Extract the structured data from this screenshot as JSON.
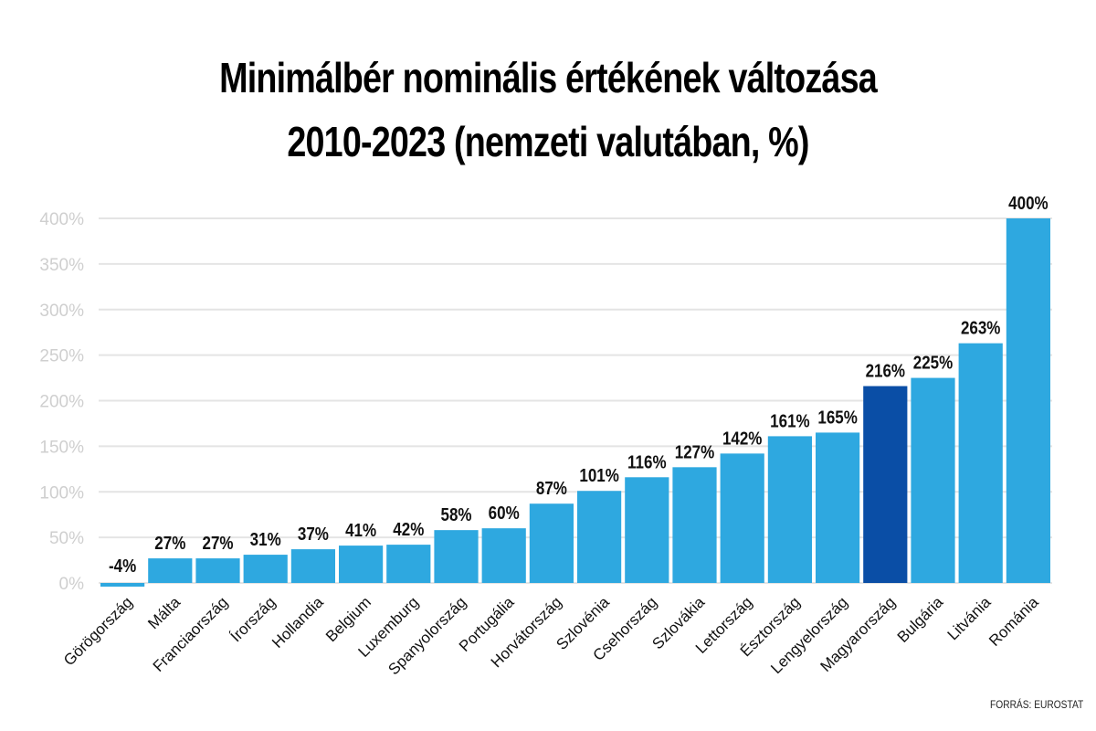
{
  "chart_data": {
    "type": "bar",
    "title": "Minimálbér nominális értékének változása",
    "subtitle": "2010-2023 (nemzeti valutában, %)",
    "xlabel": "",
    "ylabel": "",
    "ylim": [
      0,
      400
    ],
    "yticks": [
      0,
      50,
      100,
      150,
      200,
      250,
      300,
      350,
      400
    ],
    "ytick_labels": [
      "0%",
      "50%",
      "100%",
      "150%",
      "200%",
      "250%",
      "300%",
      "350%",
      "400%"
    ],
    "grid": true,
    "legend": "none",
    "categories": [
      "Görögország",
      "Málta",
      "Franciaország",
      "Írország",
      "Hollandia",
      "Belgium",
      "Luxemburg",
      "Spanyolország",
      "Portugália",
      "Horvátország",
      "Szlovénia",
      "Csehország",
      "Szlovákia",
      "Lettország",
      "Észtország",
      "Lengyelország",
      "Magyarország",
      "Bulgária",
      "Litvánia",
      "Románia"
    ],
    "values": [
      -4,
      27,
      27,
      31,
      37,
      41,
      42,
      58,
      60,
      87,
      101,
      116,
      127,
      142,
      161,
      165,
      216,
      225,
      263,
      400
    ],
    "value_labels": [
      "-4%",
      "27%",
      "27%",
      "31%",
      "37%",
      "41%",
      "42%",
      "58%",
      "60%",
      "87%",
      "101%",
      "116%",
      "127%",
      "142%",
      "161%",
      "165%",
      "216%",
      "225%",
      "263%",
      "400%"
    ],
    "highlight": "Magyarország",
    "colors": {
      "bar": "#2ea8e0",
      "highlight": "#0a4ea6",
      "grid": "#e4e4e4",
      "tick_text": "#cfcfcf"
    },
    "source": "FORRÁS: EUROSTAT"
  }
}
